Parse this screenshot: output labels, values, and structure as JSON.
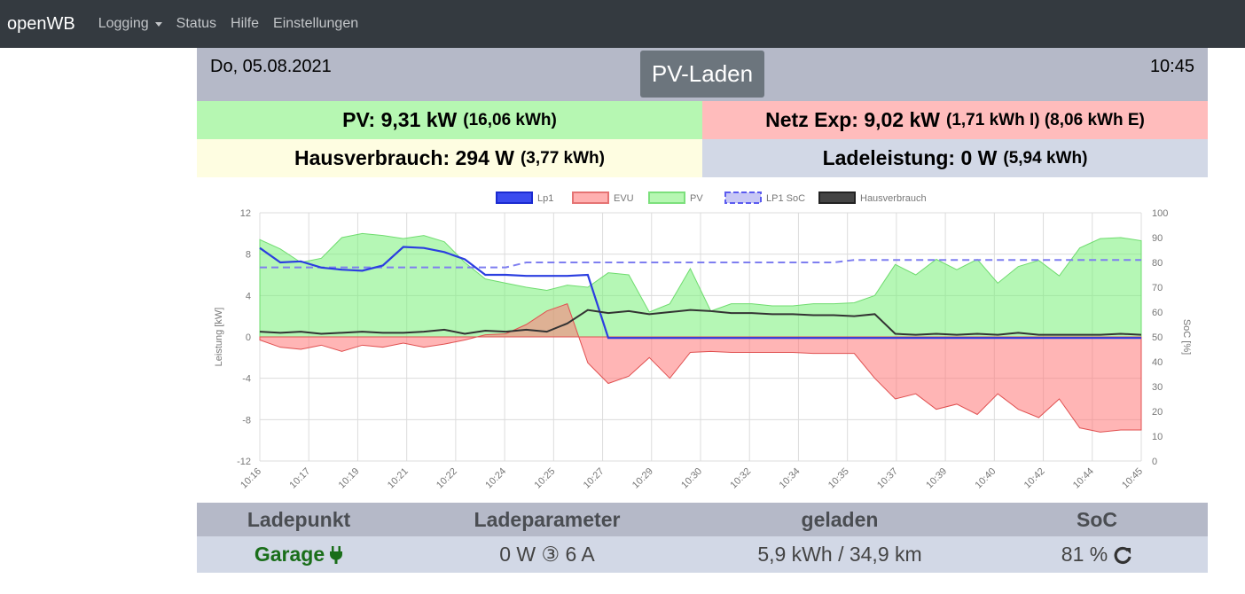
{
  "navbar": {
    "brand": "openWB",
    "items": [
      {
        "label": "Logging",
        "dropdown": true
      },
      {
        "label": "Status"
      },
      {
        "label": "Hilfe"
      },
      {
        "label": "Einstellungen"
      }
    ]
  },
  "header": {
    "date": "Do, 05.08.2021",
    "mode": "PV-Laden",
    "time": "10:45"
  },
  "stats": {
    "pv_label": "PV: 9,31 kW",
    "pv_detail": "(16,06 kWh)",
    "netz_label": "Netz Exp: 9,02 kW",
    "netz_detail": "(1,71 kWh I) (8,06 kWh E)",
    "haus_label": "Hausverbrauch: 294 W",
    "haus_detail": "(3,77 kWh)",
    "lade_label": "Ladeleistung: 0 W",
    "lade_detail": "(5,94 kWh)"
  },
  "colors": {
    "navbar": "#343a40",
    "pv": "#b6f7b2",
    "netz": "#ffbcbc",
    "haus": "#fefde1",
    "lade": "#d2d8e6",
    "header_bar": "#b5b9c8",
    "mode_button": "#6c757d"
  },
  "chart_data": {
    "type": "area",
    "legend": [
      "Lp1",
      "EVU",
      "PV",
      "LP1 SoC",
      "Hausverbrauch"
    ],
    "legend_position": "top",
    "ylabel": "Leistung [kW]",
    "y2label": "SoC [%]",
    "ylim": [
      -12,
      12
    ],
    "yticks": [
      "12",
      "8",
      "4",
      "0",
      "-4",
      "-8",
      "-12"
    ],
    "y2lim": [
      0,
      100
    ],
    "y2ticks": [
      "100",
      "90",
      "80",
      "70",
      "60",
      "50",
      "40",
      "30",
      "20",
      "10",
      "0"
    ],
    "x_labels": [
      "10:16",
      "10:17",
      "10:19",
      "10:21",
      "10:22",
      "10:24",
      "10:25",
      "10:27",
      "10:29",
      "10:30",
      "10:32",
      "10:34",
      "10:35",
      "10:37",
      "10:39",
      "10:40",
      "10:42",
      "10:44",
      "10:45"
    ],
    "grid": true,
    "series": [
      {
        "name": "PV",
        "color": "#b6f7b2",
        "values": [
          9.4,
          8.5,
          7.2,
          7.6,
          9.6,
          10.0,
          9.8,
          9.5,
          9.8,
          9.2,
          7.2,
          5.6,
          5.2,
          4.8,
          4.5,
          5.0,
          4.8,
          6.2,
          6.0,
          2.4,
          3.2,
          6.6,
          2.5,
          3.2,
          3.2,
          3.0,
          3.0,
          3.2,
          3.2,
          3.3,
          4.0,
          7.0,
          6.0,
          7.5,
          6.5,
          7.5,
          5.2,
          6.8,
          7.4,
          5.9,
          8.6,
          9.5,
          9.6,
          9.3
        ]
      },
      {
        "name": "EVU",
        "color": "#ffbcbc",
        "values": [
          -0.3,
          -1.0,
          -1.2,
          -0.8,
          -1.4,
          -0.8,
          -1.0,
          -0.6,
          -1.0,
          -0.7,
          -0.3,
          0.2,
          0.3,
          1.2,
          2.5,
          3.2,
          -2.5,
          -4.5,
          -3.8,
          -2.0,
          -4.0,
          -1.5,
          -1.4,
          -1.5,
          -1.5,
          -1.5,
          -1.5,
          -1.6,
          -1.6,
          -1.6,
          -4.0,
          -6.0,
          -5.5,
          -7.0,
          -6.5,
          -7.5,
          -5.5,
          -7.0,
          -7.8,
          -6.0,
          -8.8,
          -9.2,
          -9.0,
          -9.0
        ]
      },
      {
        "name": "Lp1",
        "color": "#2b3ee0",
        "values": [
          8.6,
          7.2,
          7.3,
          6.7,
          6.5,
          6.4,
          6.9,
          8.7,
          8.6,
          8.2,
          7.5,
          6.0,
          6.0,
          5.9,
          5.9,
          5.9,
          6.0,
          -0.1,
          -0.1,
          -0.1,
          -0.1,
          -0.1,
          -0.1,
          -0.1,
          -0.1,
          -0.1,
          -0.1,
          -0.1,
          -0.1,
          -0.1,
          -0.1,
          -0.1,
          -0.1,
          -0.1,
          -0.1,
          -0.1,
          -0.1,
          -0.1,
          -0.1,
          -0.1,
          -0.1,
          -0.1,
          -0.1,
          -0.1
        ]
      },
      {
        "name": "Hausverbrauch",
        "color": "#333333",
        "values": [
          0.5,
          0.4,
          0.5,
          0.3,
          0.4,
          0.5,
          0.4,
          0.4,
          0.5,
          0.7,
          0.3,
          0.6,
          0.5,
          0.7,
          0.5,
          1.3,
          2.6,
          2.3,
          2.5,
          2.2,
          2.4,
          2.6,
          2.5,
          2.3,
          2.3,
          2.2,
          2.2,
          2.1,
          2.1,
          2.0,
          2.2,
          0.3,
          0.2,
          0.3,
          0.2,
          0.3,
          0.2,
          0.4,
          0.2,
          0.2,
          0.2,
          0.2,
          0.3,
          0.2
        ]
      },
      {
        "name": "LP1 SoC",
        "color": "#7e7ef0",
        "axis": "right",
        "values": [
          78,
          78,
          78,
          78,
          78,
          78,
          78,
          78,
          78,
          78,
          78,
          78,
          78,
          80,
          80,
          80,
          80,
          80,
          80,
          80,
          80,
          80,
          80,
          80,
          80,
          80,
          80,
          80,
          80,
          81,
          81,
          81,
          81,
          81,
          81,
          81,
          81,
          81,
          81,
          81,
          81,
          81,
          81,
          81
        ]
      }
    ]
  },
  "table": {
    "headers": [
      "Ladepunkt",
      "Ladeparameter",
      "geladen",
      "SoC"
    ],
    "row": {
      "ladepunkt": "Garage",
      "parameter": "0 W ③ 6 A",
      "geladen": "5,9 kWh / 34,9 km",
      "soc": "81 %"
    }
  }
}
